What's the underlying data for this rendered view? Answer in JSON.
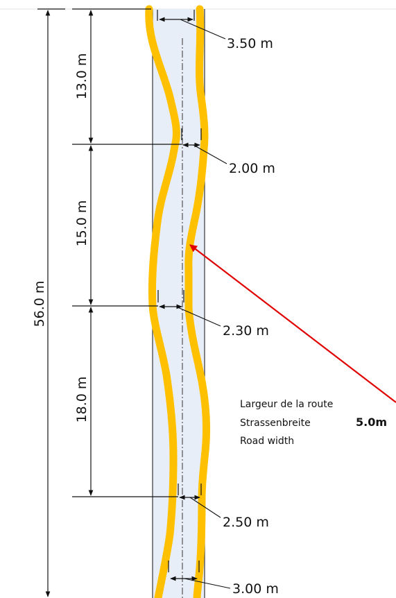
{
  "colors": {
    "road_fill": "#e8eef8",
    "road_edge": "#333333",
    "lane_line": "#ffc000",
    "dimension": "#111111",
    "pointer_arrow": "#e00000"
  },
  "total_length": "56.0 m",
  "segments": [
    {
      "length": "13.0 m"
    },
    {
      "length": "15.0 m"
    },
    {
      "length": "18.0 m"
    }
  ],
  "gaps": [
    {
      "label": "3.50 m"
    },
    {
      "label": "2.00 m"
    },
    {
      "label": "2.30 m"
    },
    {
      "label": "2.50 m"
    },
    {
      "label": "3.00 m"
    }
  ],
  "road_width": {
    "label_fr": "Largeur de la route",
    "label_de": "Strassenbreite",
    "label_en": "Road width",
    "value": "5.0m"
  }
}
